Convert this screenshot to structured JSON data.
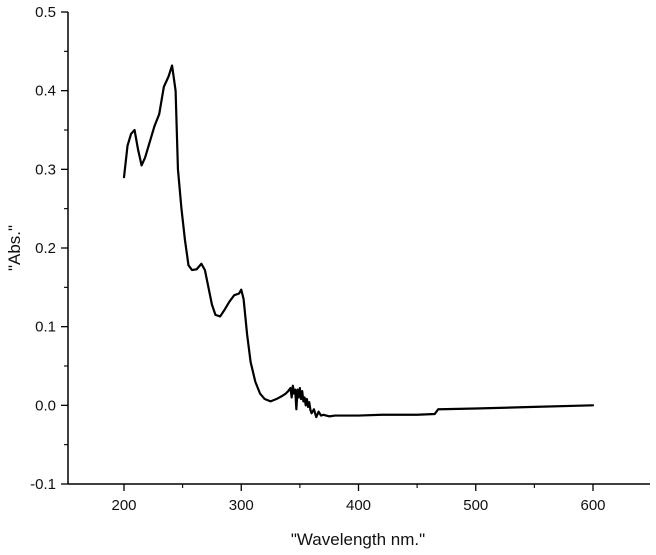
{
  "chart_data": {
    "type": "line",
    "xlabel": "\"Wavelength nm.\"",
    "ylabel": "\"Abs.\"",
    "xlim": [
      150,
      650
    ],
    "ylim": [
      -0.1,
      0.5
    ],
    "x_ticks": [
      200,
      300,
      400,
      500,
      600
    ],
    "x_tick_labels": [
      "200",
      "300",
      "400",
      "500",
      "600"
    ],
    "y_ticks": [
      -0.1,
      0.0,
      0.1,
      0.2,
      0.3,
      0.4,
      0.5
    ],
    "y_tick_labels": [
      "-0.1",
      "0.0",
      "0.1",
      "0.2",
      "0.3",
      "0.4",
      "0.5"
    ],
    "grid": false,
    "legend": "none",
    "line_color": "#000000",
    "series": [
      {
        "x": [
          200,
          203,
          206,
          209,
          212,
          215,
          218,
          222,
          226,
          230,
          234,
          238,
          241,
          244,
          246,
          249,
          252,
          255,
          258,
          262,
          266,
          269,
          272,
          275,
          278,
          282,
          286,
          290,
          294,
          298,
          300,
          302,
          305,
          308,
          312,
          316,
          320,
          325,
          330,
          335,
          338,
          340,
          342,
          343,
          344,
          345,
          346,
          347,
          348,
          349,
          350,
          351,
          352,
          353,
          354,
          355,
          356,
          357,
          358,
          359,
          360,
          362,
          364,
          366,
          368,
          370,
          375,
          380,
          400,
          420,
          450,
          465,
          468,
          470,
          500,
          550,
          600
        ],
        "y": [
          0.29,
          0.33,
          0.345,
          0.35,
          0.325,
          0.305,
          0.315,
          0.335,
          0.355,
          0.37,
          0.405,
          0.418,
          0.432,
          0.4,
          0.3,
          0.25,
          0.21,
          0.178,
          0.172,
          0.173,
          0.18,
          0.172,
          0.15,
          0.128,
          0.115,
          0.113,
          0.122,
          0.132,
          0.14,
          0.142,
          0.147,
          0.135,
          0.09,
          0.055,
          0.03,
          0.015,
          0.008,
          0.005,
          0.008,
          0.012,
          0.015,
          0.018,
          0.022,
          0.01,
          0.025,
          0.015,
          0.02,
          -0.005,
          0.02,
          0.01,
          0.022,
          0.008,
          0.018,
          0.005,
          0.01,
          0.0,
          0.008,
          -0.002,
          0.004,
          -0.006,
          -0.01,
          -0.005,
          -0.015,
          -0.008,
          -0.013,
          -0.012,
          -0.014,
          -0.013,
          -0.013,
          -0.012,
          -0.012,
          -0.011,
          -0.005,
          -0.005,
          -0.004,
          -0.002,
          0.0
        ]
      }
    ]
  }
}
